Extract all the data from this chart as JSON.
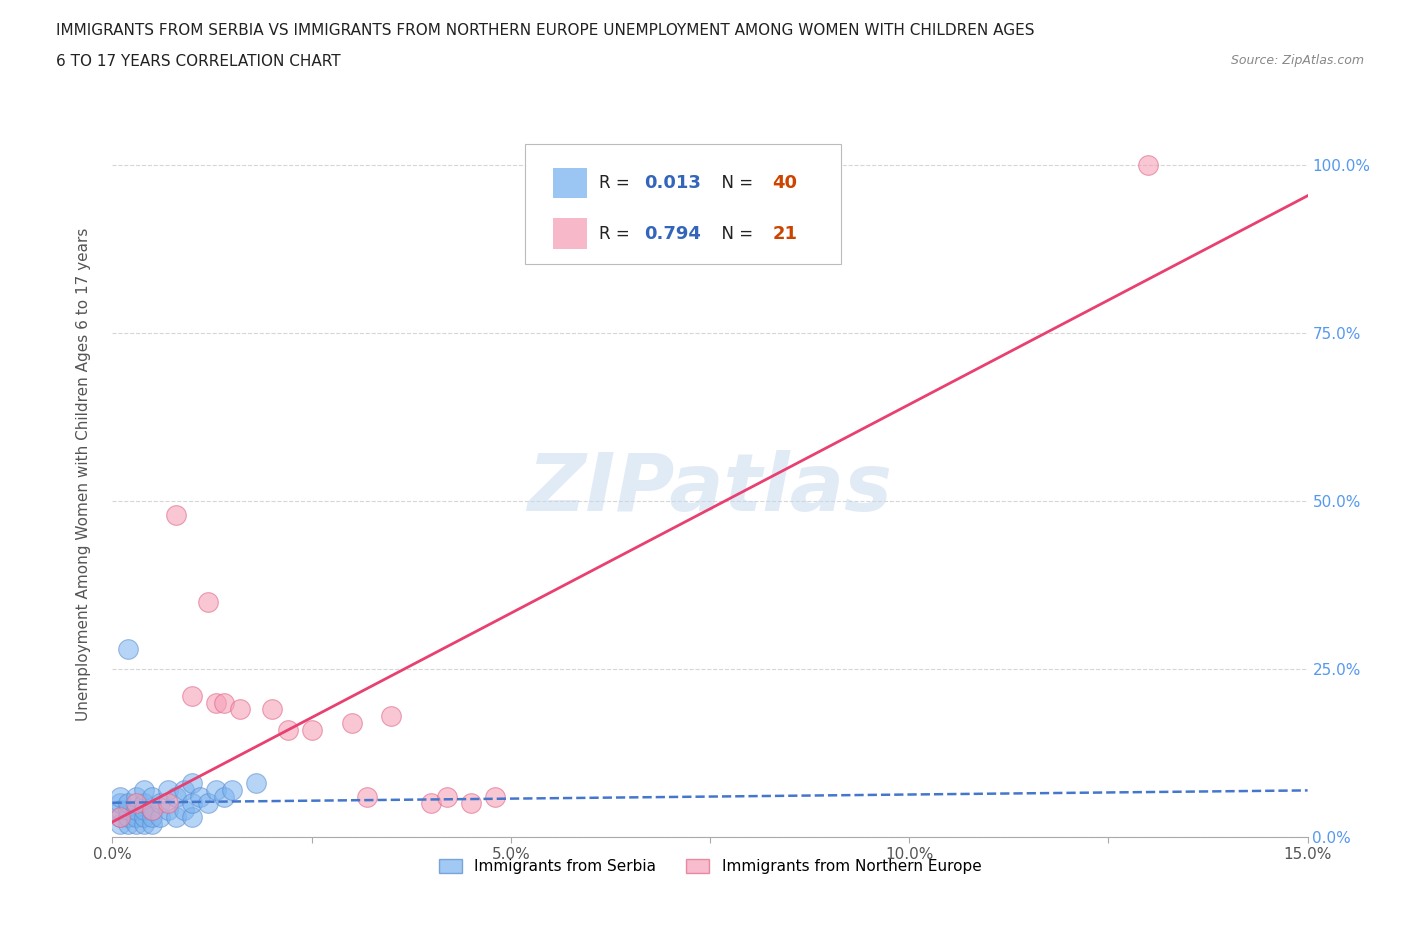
{
  "title_line1": "IMMIGRANTS FROM SERBIA VS IMMIGRANTS FROM NORTHERN EUROPE UNEMPLOYMENT AMONG WOMEN WITH CHILDREN AGES",
  "title_line2": "6 TO 17 YEARS CORRELATION CHART",
  "source": "Source: ZipAtlas.com",
  "ylabel": "Unemployment Among Women with Children Ages 6 to 17 years",
  "xlim": [
    0.0,
    0.15
  ],
  "ylim": [
    0.0,
    1.08
  ],
  "serbia_color": "#7ab3ef",
  "serbia_edge_color": "#5588cc",
  "northern_color": "#f5a0b8",
  "northern_edge_color": "#e06688",
  "serbia_line_color": "#4477cc",
  "northern_line_color": "#e84070",
  "serbia_R": 0.013,
  "serbia_N": 40,
  "northern_R": 0.794,
  "northern_N": 21,
  "legend_R_color": "#3366bb",
  "legend_N_color": "#cc4400",
  "watermark": "ZIPatlas",
  "watermark_color": "#c5d8ee",
  "background_color": "#ffffff",
  "serbia_x": [
    0.001,
    0.001,
    0.001,
    0.001,
    0.001,
    0.002,
    0.002,
    0.002,
    0.002,
    0.003,
    0.003,
    0.003,
    0.003,
    0.004,
    0.004,
    0.004,
    0.004,
    0.004,
    0.005,
    0.005,
    0.005,
    0.005,
    0.006,
    0.006,
    0.007,
    0.007,
    0.008,
    0.008,
    0.009,
    0.009,
    0.01,
    0.01,
    0.01,
    0.011,
    0.012,
    0.013,
    0.014,
    0.015,
    0.018,
    0.002
  ],
  "serbia_y": [
    0.02,
    0.03,
    0.04,
    0.05,
    0.06,
    0.02,
    0.03,
    0.04,
    0.05,
    0.02,
    0.03,
    0.04,
    0.06,
    0.02,
    0.03,
    0.04,
    0.05,
    0.07,
    0.02,
    0.03,
    0.04,
    0.06,
    0.03,
    0.05,
    0.04,
    0.07,
    0.03,
    0.06,
    0.04,
    0.07,
    0.03,
    0.05,
    0.08,
    0.06,
    0.05,
    0.07,
    0.06,
    0.07,
    0.08,
    0.28
  ],
  "northern_x": [
    0.001,
    0.003,
    0.005,
    0.007,
    0.008,
    0.01,
    0.012,
    0.013,
    0.014,
    0.016,
    0.02,
    0.022,
    0.025,
    0.03,
    0.032,
    0.035,
    0.04,
    0.042,
    0.045,
    0.048,
    0.13
  ],
  "northern_y": [
    0.03,
    0.05,
    0.04,
    0.05,
    0.48,
    0.21,
    0.35,
    0.2,
    0.2,
    0.19,
    0.19,
    0.16,
    0.16,
    0.17,
    0.06,
    0.18,
    0.05,
    0.06,
    0.05,
    0.06,
    1.0
  ]
}
